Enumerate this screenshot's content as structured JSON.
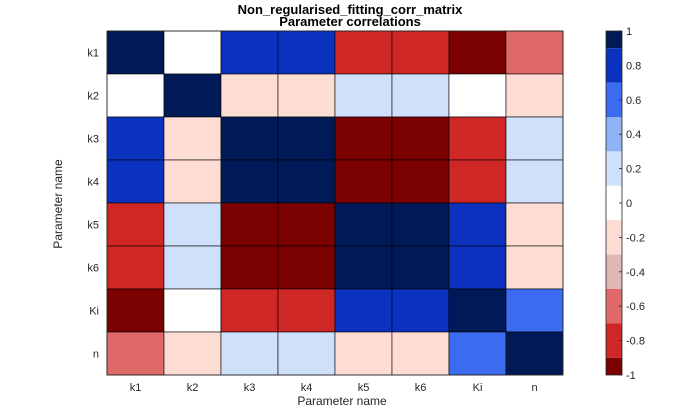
{
  "chart_data": {
    "type": "heatmap",
    "title": "Non_regularised_fitting_corr_matrix",
    "subtitle": "Parameter correlations",
    "xlabel": "Parameter name",
    "ylabel": "Parameter name",
    "x_categories": [
      "k1",
      "k2",
      "k3",
      "k4",
      "k5",
      "k6",
      "Ki",
      "n"
    ],
    "y_categories": [
      "k1",
      "k2",
      "k3",
      "k4",
      "k5",
      "k6",
      "Ki",
      "n"
    ],
    "values": [
      [
        1.0,
        0.0,
        0.85,
        0.85,
        -0.75,
        -0.75,
        -0.95,
        -0.55
      ],
      [
        0.0,
        1.0,
        -0.15,
        -0.15,
        0.15,
        0.15,
        0.0,
        -0.15
      ],
      [
        0.85,
        -0.15,
        1.0,
        1.0,
        -0.95,
        -0.95,
        -0.75,
        0.15
      ],
      [
        0.85,
        -0.15,
        1.0,
        1.0,
        -0.95,
        -0.95,
        -0.75,
        0.15
      ],
      [
        -0.75,
        0.15,
        -0.95,
        -0.95,
        1.0,
        1.0,
        0.85,
        -0.15
      ],
      [
        -0.75,
        0.15,
        -0.95,
        -0.95,
        1.0,
        1.0,
        0.85,
        -0.15
      ],
      [
        -0.95,
        0.0,
        -0.75,
        -0.75,
        0.85,
        0.85,
        1.0,
        0.6
      ],
      [
        -0.55,
        -0.15,
        0.15,
        0.15,
        -0.15,
        -0.15,
        0.6,
        1.0
      ]
    ],
    "clim": [
      -1,
      1
    ],
    "colorbar": {
      "ticks": [
        "1",
        "0.8",
        "0.6",
        "0.4",
        "0.2",
        "0",
        "-0.2",
        "-0.4",
        "-0.6",
        "-0.8",
        "-1"
      ],
      "levels": [
        {
          "from": 0.9,
          "to": 1.0,
          "color": "#001a57"
        },
        {
          "from": 0.7,
          "to": 0.9,
          "color": "#0a32be"
        },
        {
          "from": 0.5,
          "to": 0.7,
          "color": "#3b6cf0"
        },
        {
          "from": 0.3,
          "to": 0.5,
          "color": "#8fb3f5"
        },
        {
          "from": 0.1,
          "to": 0.3,
          "color": "#cfe0fa"
        },
        {
          "from": -0.1,
          "to": 0.1,
          "color": "#ffffff"
        },
        {
          "from": -0.3,
          "to": -0.1,
          "color": "#fddcd3"
        },
        {
          "from": -0.5,
          "to": -0.3,
          "color": "#dfb7b4"
        },
        {
          "from": -0.7,
          "to": -0.5,
          "color": "#e06a6a"
        },
        {
          "from": -0.9,
          "to": -0.7,
          "color": "#cf2626"
        },
        {
          "from": -1.0,
          "to": -0.9,
          "color": "#7b0000"
        }
      ]
    },
    "grid": true,
    "legend": "colorbar-right"
  }
}
